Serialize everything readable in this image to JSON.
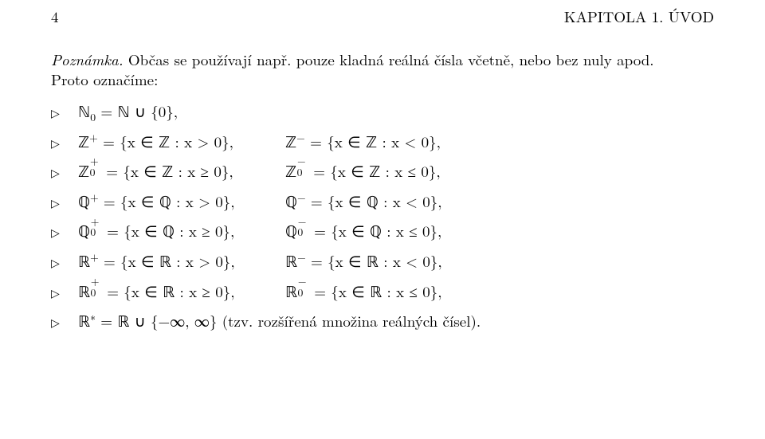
{
  "header": {
    "page_no": "4",
    "chapter": "KAPITOLA 1. ÚVOD"
  },
  "para": {
    "lead": "Poznámka.",
    "rest_a": " Občas se používají např. pouze kladná reálná čísla včetně, nebo bez nuly apod.",
    "rest_b": "Proto označíme:"
  },
  "sym": {
    "N": "ℕ",
    "Z": "ℤ",
    "Q": "ℚ",
    "R": "ℝ",
    "in": "∈",
    "cup": "∪",
    "ge": "≥",
    "le": "≤",
    "tri": "▷",
    "inf": "∞",
    "minus": "−",
    "star": "∗"
  },
  "rows": {
    "r0": {
      "left": "ℕ₀ = ℕ ∪ {0},"
    },
    "r1": {
      "left": "ℤ⁺ = {x ∈ ℤ : x > 0},",
      "right": "ℤ⁻ = {x ∈ ℤ : x < 0},"
    },
    "r2": {
      "left": "ℤ₀⁺ = {x ∈ ℤ : x ≥ 0},",
      "right": "ℤ₀⁻ = {x ∈ ℤ : x ≤ 0},"
    },
    "r3": {
      "left": "ℚ⁺ = {x ∈ ℚ : x > 0},",
      "right": "ℚ⁻ = {x ∈ ℚ : x < 0},"
    },
    "r4": {
      "left": "ℚ₀⁺ = {x ∈ ℚ : x ≥ 0},",
      "right": "ℚ₀⁻ = {x ∈ ℚ : x ≤ 0},"
    },
    "r5": {
      "left": "ℝ⁺ = {x ∈ ℝ : x > 0},",
      "right": "ℝ⁻ = {x ∈ ℝ : x < 0},"
    },
    "r6": {
      "left": "ℝ₀⁺ = {x ∈ ℝ : x ≥ 0},",
      "right": "ℝ₀⁻ = {x ∈ ℝ : x ≤ 0},"
    },
    "r7": {
      "left": "ℝ∗ = ℝ ∪ {−∞, ∞} (tzv. rozšířená množina reálných čísel)."
    }
  }
}
